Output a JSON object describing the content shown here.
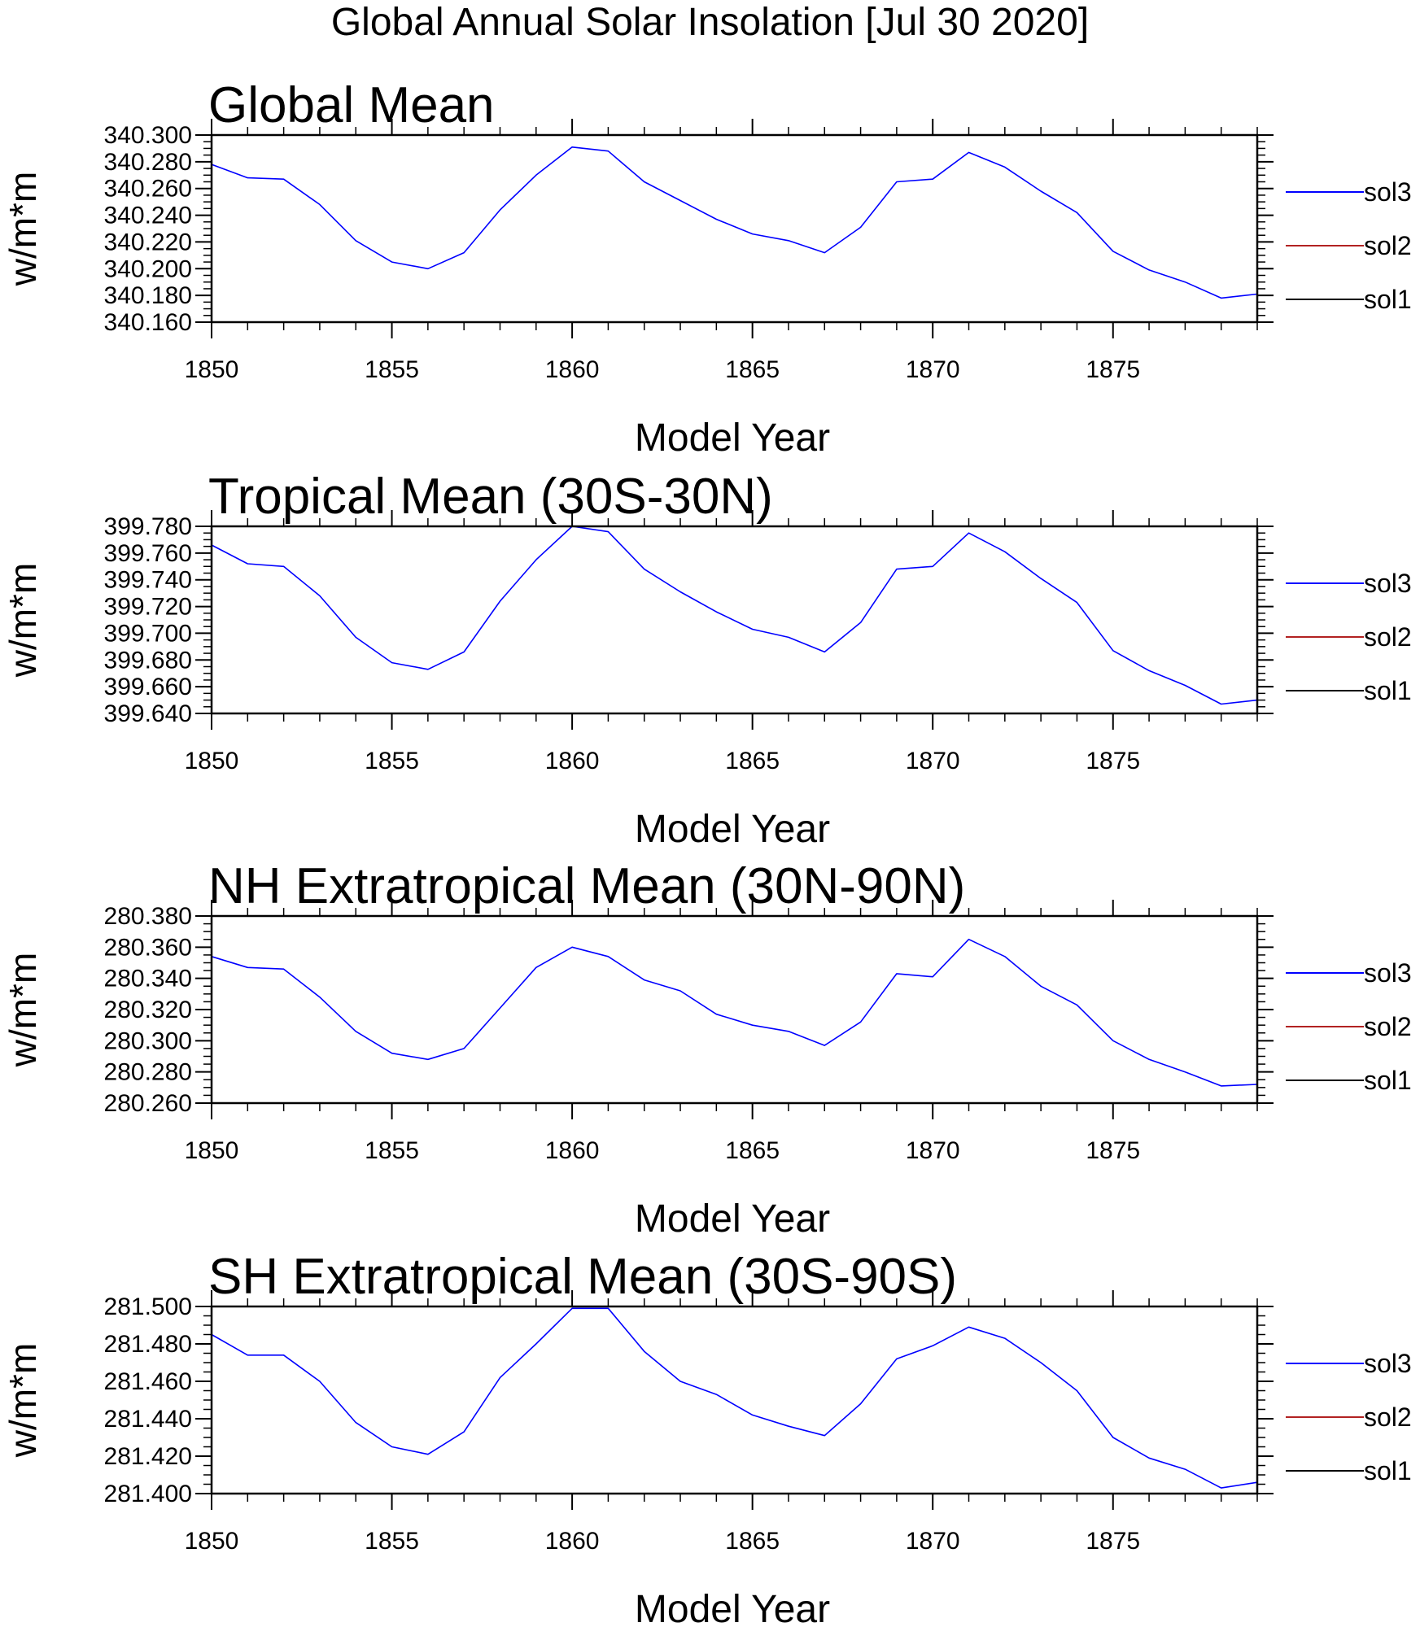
{
  "figure": {
    "title": "Global Annual Solar Insolation [Jul 30 2020]"
  },
  "colors": {
    "sol3": "#0000ff",
    "sol2": "#b22222",
    "sol1": "#000000",
    "axes": "#000000"
  },
  "chart_data": [
    {
      "type": "line",
      "title": "Global Mean",
      "xlabel": "Model Year",
      "ylabel": "w/m*m",
      "xlim": [
        1850,
        1879
      ],
      "ylim": [
        340.16,
        340.3
      ],
      "xticks": [
        1850,
        1855,
        1860,
        1865,
        1870,
        1875
      ],
      "yticks": [
        "340.160",
        "340.180",
        "340.200",
        "340.220",
        "340.240",
        "340.260",
        "340.280",
        "340.300"
      ],
      "ymin_tick": 340.16,
      "ytick_step": 0.02,
      "legend": [
        "sol3",
        "sol2",
        "sol1"
      ],
      "x": [
        1850,
        1851,
        1852,
        1853,
        1854,
        1855,
        1856,
        1857,
        1858,
        1859,
        1860,
        1861,
        1862,
        1863,
        1864,
        1865,
        1866,
        1867,
        1868,
        1869,
        1870,
        1871,
        1872,
        1873,
        1874,
        1875,
        1876,
        1877,
        1878,
        1879
      ],
      "series": [
        {
          "name": "sol3",
          "values": [
            340.278,
            340.268,
            340.267,
            340.248,
            340.221,
            340.205,
            340.2,
            340.212,
            340.244,
            340.27,
            340.291,
            340.288,
            340.265,
            340.251,
            340.237,
            340.226,
            340.221,
            340.212,
            340.231,
            340.265,
            340.267,
            340.287,
            340.276,
            340.258,
            340.242,
            340.213,
            340.199,
            340.19,
            340.178,
            340.181
          ]
        }
      ]
    },
    {
      "type": "line",
      "title": "Tropical Mean (30S-30N)",
      "xlabel": "Model Year",
      "ylabel": "w/m*m",
      "xlim": [
        1850,
        1879
      ],
      "ylim": [
        399.64,
        399.78
      ],
      "xticks": [
        1850,
        1855,
        1860,
        1865,
        1870,
        1875
      ],
      "yticks": [
        "399.640",
        "399.660",
        "399.680",
        "399.700",
        "399.720",
        "399.740",
        "399.760",
        "399.780"
      ],
      "ymin_tick": 399.64,
      "ytick_step": 0.02,
      "legend": [
        "sol3",
        "sol2",
        "sol1"
      ],
      "x": [
        1850,
        1851,
        1852,
        1853,
        1854,
        1855,
        1856,
        1857,
        1858,
        1859,
        1860,
        1861,
        1862,
        1863,
        1864,
        1865,
        1866,
        1867,
        1868,
        1869,
        1870,
        1871,
        1872,
        1873,
        1874,
        1875,
        1876,
        1877,
        1878,
        1879
      ],
      "series": [
        {
          "name": "sol3",
          "values": [
            399.766,
            399.752,
            399.75,
            399.728,
            399.697,
            399.678,
            399.673,
            399.686,
            399.724,
            399.755,
            399.78,
            399.776,
            399.748,
            399.731,
            399.716,
            399.703,
            399.697,
            399.686,
            399.708,
            399.748,
            399.75,
            399.775,
            399.761,
            399.741,
            399.723,
            399.687,
            399.672,
            399.661,
            399.647,
            399.65
          ]
        }
      ]
    },
    {
      "type": "line",
      "title": "NH Extratropical Mean (30N-90N)",
      "xlabel": "Model Year",
      "ylabel": "w/m*m",
      "xlim": [
        1850,
        1879
      ],
      "ylim": [
        280.26,
        280.38
      ],
      "xticks": [
        1850,
        1855,
        1860,
        1865,
        1870,
        1875
      ],
      "yticks": [
        "280.260",
        "280.280",
        "280.300",
        "280.320",
        "280.340",
        "280.360",
        "280.380"
      ],
      "ymin_tick": 280.26,
      "ytick_step": 0.02,
      "legend": [
        "sol3",
        "sol2",
        "sol1"
      ],
      "x": [
        1850,
        1851,
        1852,
        1853,
        1854,
        1855,
        1856,
        1857,
        1858,
        1859,
        1860,
        1861,
        1862,
        1863,
        1864,
        1865,
        1866,
        1867,
        1868,
        1869,
        1870,
        1871,
        1872,
        1873,
        1874,
        1875,
        1876,
        1877,
        1878,
        1879
      ],
      "series": [
        {
          "name": "sol3",
          "values": [
            280.354,
            280.347,
            280.346,
            280.328,
            280.306,
            280.292,
            280.288,
            280.295,
            280.321,
            280.347,
            280.36,
            280.354,
            280.339,
            280.332,
            280.317,
            280.31,
            280.306,
            280.297,
            280.312,
            280.343,
            280.341,
            280.365,
            280.354,
            280.335,
            280.323,
            280.3,
            280.288,
            280.28,
            280.271,
            280.272
          ]
        }
      ]
    },
    {
      "type": "line",
      "title": "SH Extratropical Mean (30S-90S)",
      "xlabel": "Model Year",
      "ylabel": "w/m*m",
      "xlim": [
        1850,
        1879
      ],
      "ylim": [
        281.4,
        281.5
      ],
      "xticks": [
        1850,
        1855,
        1860,
        1865,
        1870,
        1875
      ],
      "yticks": [
        "281.400",
        "281.420",
        "281.440",
        "281.460",
        "281.480",
        "281.500"
      ],
      "ymin_tick": 281.4,
      "ytick_step": 0.02,
      "legend": [
        "sol3",
        "sol2",
        "sol1"
      ],
      "x": [
        1850,
        1851,
        1852,
        1853,
        1854,
        1855,
        1856,
        1857,
        1858,
        1859,
        1860,
        1861,
        1862,
        1863,
        1864,
        1865,
        1866,
        1867,
        1868,
        1869,
        1870,
        1871,
        1872,
        1873,
        1874,
        1875,
        1876,
        1877,
        1878,
        1879
      ],
      "series": [
        {
          "name": "sol3",
          "values": [
            281.485,
            281.474,
            281.474,
            281.46,
            281.438,
            281.425,
            281.421,
            281.433,
            281.462,
            281.48,
            281.499,
            281.499,
            281.476,
            281.46,
            281.453,
            281.442,
            281.436,
            281.431,
            281.448,
            281.472,
            281.479,
            281.489,
            281.483,
            281.47,
            281.455,
            281.43,
            281.419,
            281.413,
            281.403,
            281.406
          ]
        }
      ]
    }
  ]
}
